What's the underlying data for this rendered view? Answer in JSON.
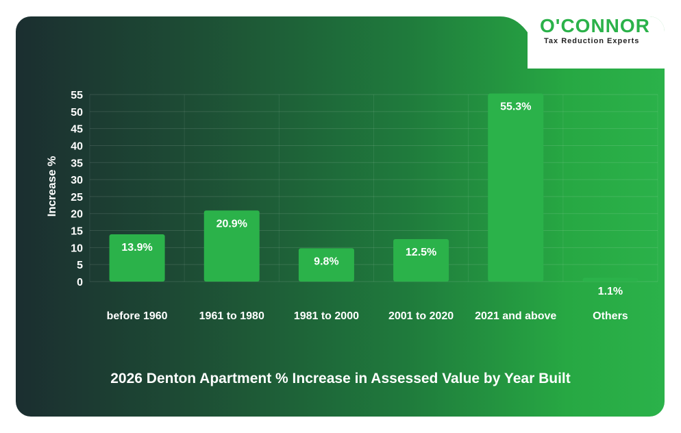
{
  "brand": {
    "name": "O'CONNOR",
    "tagline": "Tax Reduction Experts",
    "color": "#2bb24a"
  },
  "chart_data": {
    "type": "bar",
    "title": "2026 Denton Apartment % Increase in Assessed Value by Year Built",
    "xlabel": "",
    "ylabel": "Increase %",
    "ylim": [
      0,
      55
    ],
    "yticks": [
      0,
      5,
      10,
      15,
      20,
      25,
      30,
      35,
      40,
      45,
      50,
      55
    ],
    "categories": [
      "before 1960",
      "1961 to 1980",
      "1981 to 2000",
      "2001 to 2020",
      "2021 and above",
      "Others"
    ],
    "values": [
      13.9,
      20.9,
      9.8,
      12.5,
      55.3,
      1.1
    ],
    "data_labels": [
      "13.9%",
      "20.9%",
      "9.8%",
      "12.5%",
      "55.3%",
      "1.1%"
    ],
    "bar_color": "#2bb24a",
    "grid": true,
    "legend": "none"
  }
}
